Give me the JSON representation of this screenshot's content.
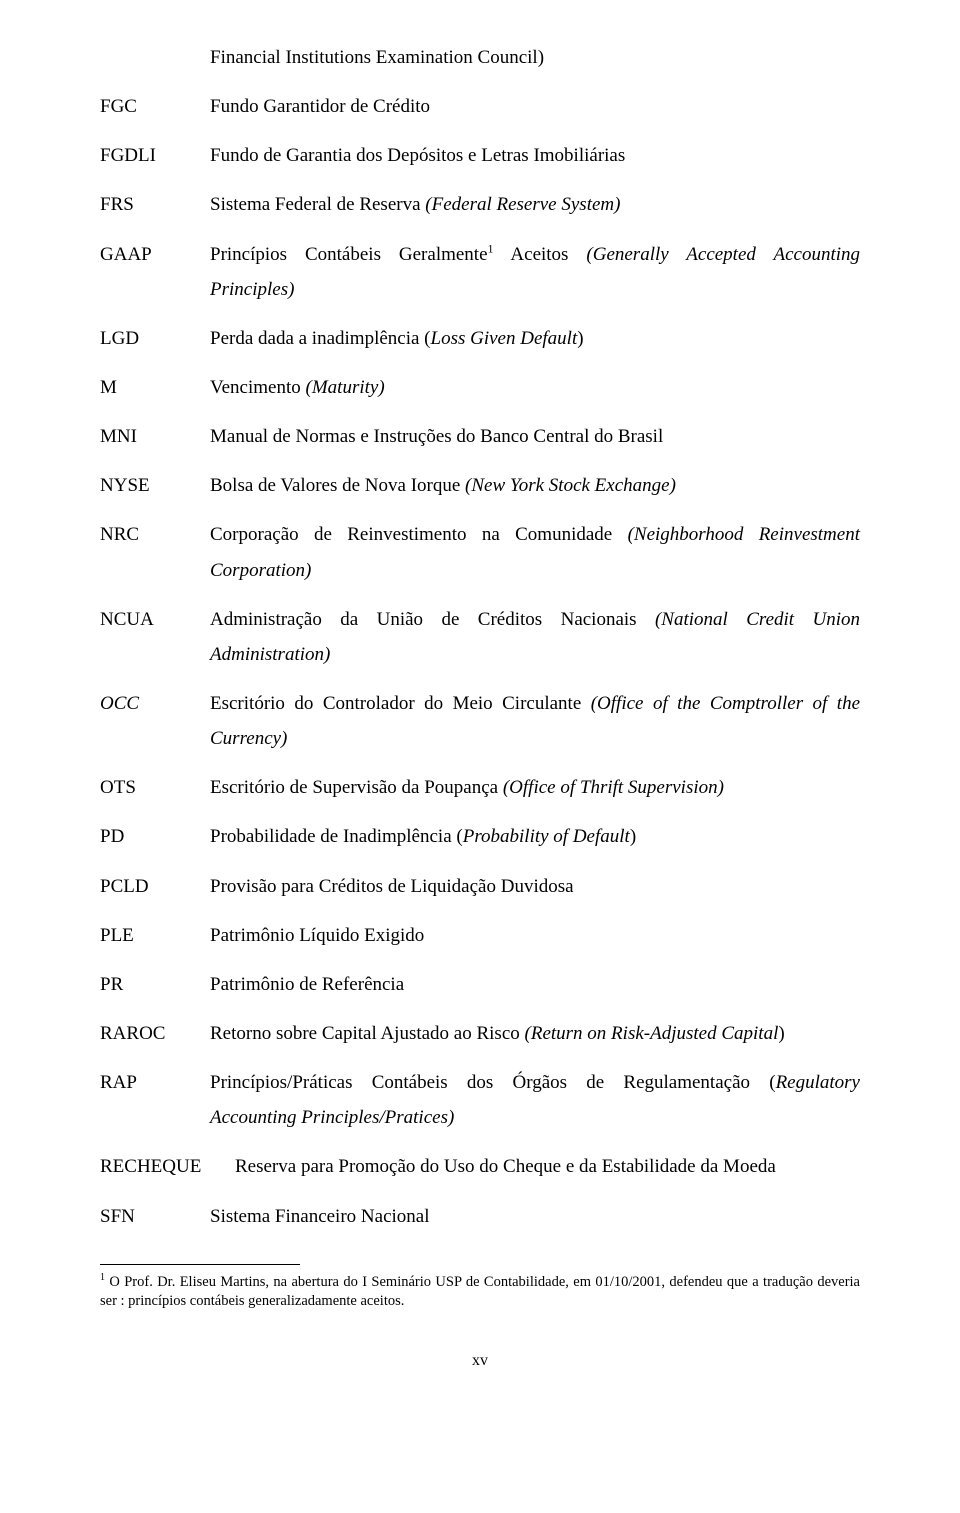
{
  "continuation": "Financial Institutions Examination Council)",
  "entries": [
    {
      "acronym": "FGC",
      "def": "Fundo Garantidor de Crédito",
      "italicAcronym": false
    },
    {
      "acronym": "FGDLI",
      "def": "Fundo de Garantia dos Depósitos e Letras Imobiliárias",
      "italicAcronym": false
    },
    {
      "acronym": "FRS",
      "def_html": "Sistema Federal de Reserva <span class=\"italic\">(Federal Reserve System)</span>",
      "italicAcronym": false
    },
    {
      "acronym": "GAAP",
      "def_html": "Princípios Contábeis Geralmente<span class=\"sup\">1</span> Aceitos <span class=\"italic\">(Generally Accepted Accounting Principles)</span>",
      "italicAcronym": false,
      "spread": true
    },
    {
      "acronym": "LGD",
      "def_html": "Perda dada a inadimplência (<span class=\"italic\">Loss Given Default</span>)",
      "italicAcronym": false
    },
    {
      "acronym": "M",
      "def_html": "Vencimento <span class=\"italic\">(Maturity)</span>",
      "italicAcronym": false
    },
    {
      "acronym": "MNI",
      "def": "Manual de Normas e Instruções do Banco Central do Brasil",
      "italicAcronym": false
    },
    {
      "acronym": "NYSE",
      "def_html": "Bolsa de Valores de Nova Iorque <span class=\"italic\">(New York Stock Exchange)</span>",
      "italicAcronym": false
    },
    {
      "acronym": "NRC",
      "def_html": "Corporação de Reinvestimento na Comunidade <span class=\"italic\">(Neighborhood Reinvestment Corporation)</span>",
      "italicAcronym": false,
      "spread": true
    },
    {
      "acronym": "NCUA",
      "def_html": "Administração da União de Créditos Nacionais <span class=\"italic\">(National Credit Union Administration)</span>",
      "italicAcronym": false,
      "spread": true
    },
    {
      "acronym": "OCC",
      "def_html": "Escritório do Controlador do Meio Circulante <span class=\"italic\">(Office of the Comptroller of the Currency)</span>",
      "italicAcronym": true,
      "spread": true
    },
    {
      "acronym": "OTS",
      "def_html": "Escritório de Supervisão da Poupança <span class=\"italic\">(Office of Thrift Supervision)</span>",
      "italicAcronym": false
    },
    {
      "acronym": "PD",
      "def_html": "Probabilidade de Inadimplência (<span class=\"italic\">Probability of Default</span>)",
      "italicAcronym": false
    },
    {
      "acronym": "PCLD",
      "def": "Provisão para Créditos de Liquidação Duvidosa",
      "italicAcronym": false
    },
    {
      "acronym": "PLE",
      "def": "Patrimônio Líquido Exigido",
      "italicAcronym": false
    },
    {
      "acronym": "PR",
      "def": "Patrimônio de Referência",
      "italicAcronym": false
    },
    {
      "acronym": "RAROC",
      "def_html": "Retorno sobre Capital Ajustado ao Risco <span class=\"italic\">(Return on Risk-Adjusted Capital</span>)",
      "italicAcronym": false,
      "spread": true
    },
    {
      "acronym": "RAP",
      "def_html": "Princípios/Práticas Contábeis dos Órgãos de Regulamentação (<span class=\"italic\">Regulatory Accounting Principles/Pratices)</span>",
      "italicAcronym": false,
      "spread": true
    },
    {
      "acronym": "RECHEQUE",
      "def": "Reserva para Promoção do Uso do Cheque e da Estabilidade da Moeda",
      "italicAcronym": false,
      "wideAcronym": true
    },
    {
      "acronym": "SFN",
      "def": "Sistema Financeiro Nacional",
      "italicAcronym": false
    }
  ],
  "footnote": {
    "marker": "1",
    "text": " O Prof. Dr. Eliseu Martins, na abertura do I Seminário USP de Contabilidade, em 01/10/2001, defendeu que a tradução deveria ser : princípios contábeis generalizadamente aceitos."
  },
  "pageNumber": "xv"
}
